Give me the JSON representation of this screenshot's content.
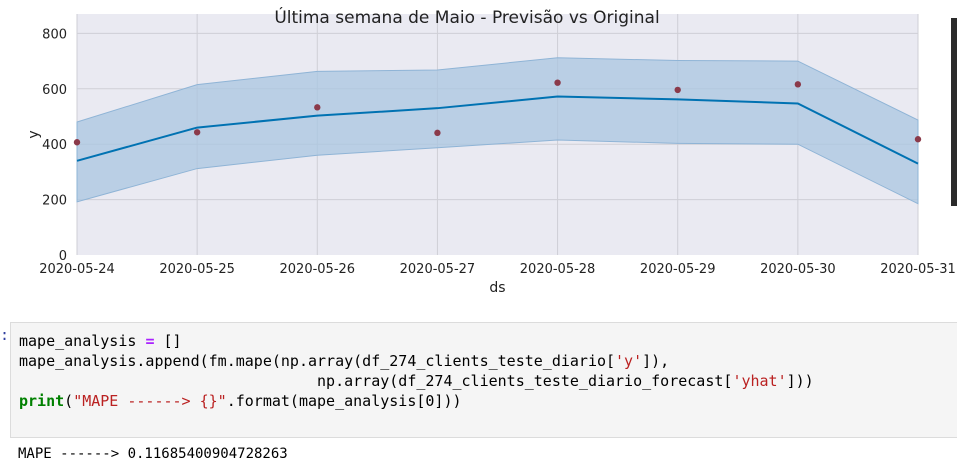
{
  "chart_data": {
    "type": "line",
    "title": "Última semana de Maio - Previsão vs Original",
    "xlabel": "ds",
    "ylabel": "y",
    "x": [
      "2020-05-24",
      "2020-05-25",
      "2020-05-26",
      "2020-05-27",
      "2020-05-28",
      "2020-05-29",
      "2020-05-30",
      "2020-05-31"
    ],
    "xlim": [
      "2020-05-24",
      "2020-05-31"
    ],
    "ylim": [
      0,
      870
    ],
    "yticks": [
      0,
      200,
      400,
      600,
      800
    ],
    "grid": true,
    "series": [
      {
        "values": [
          340,
          460,
          503,
          530,
          572,
          562,
          547,
          330
        ],
        "color": "#0072b2"
      },
      {
        "values": [
          407,
          443,
          533,
          441,
          622,
          596,
          616,
          418
        ],
        "color": "#8b3a4a"
      }
    ],
    "band": {
      "upper": [
        480,
        615,
        663,
        668,
        712,
        702,
        700,
        487
      ],
      "lower": [
        192,
        312,
        360,
        387,
        415,
        403,
        400,
        185
      ],
      "color": "#aac6e0"
    },
    "colors": {
      "background": "#eaeaf2",
      "grid": "#cfcfd6"
    }
  },
  "code_cell": {
    "prompt": ":",
    "lines": [
      [
        {
          "t": "mape_analysis "
        },
        {
          "t": "=",
          "c": "op"
        },
        {
          "t": " []"
        }
      ],
      [
        {
          "t": "mape_analysis.append(fm.mape(np.array(df_274_clients_teste_diario["
        },
        {
          "t": "'y'",
          "c": "str"
        },
        {
          "t": "]),"
        }
      ],
      [
        {
          "t": "                                 np.array(df_274_clients_teste_diario_forecast["
        },
        {
          "t": "'yhat'",
          "c": "str"
        },
        {
          "t": "]))"
        }
      ],
      [
        {
          "t": "print",
          "c": "kw"
        },
        {
          "t": "("
        },
        {
          "t": "\"MAPE ------> {}\"",
          "c": "str"
        },
        {
          "t": ".format(mape_analysis[0]))"
        }
      ]
    ]
  },
  "output": {
    "text": "MAPE ------> 0.11685400904728263"
  }
}
